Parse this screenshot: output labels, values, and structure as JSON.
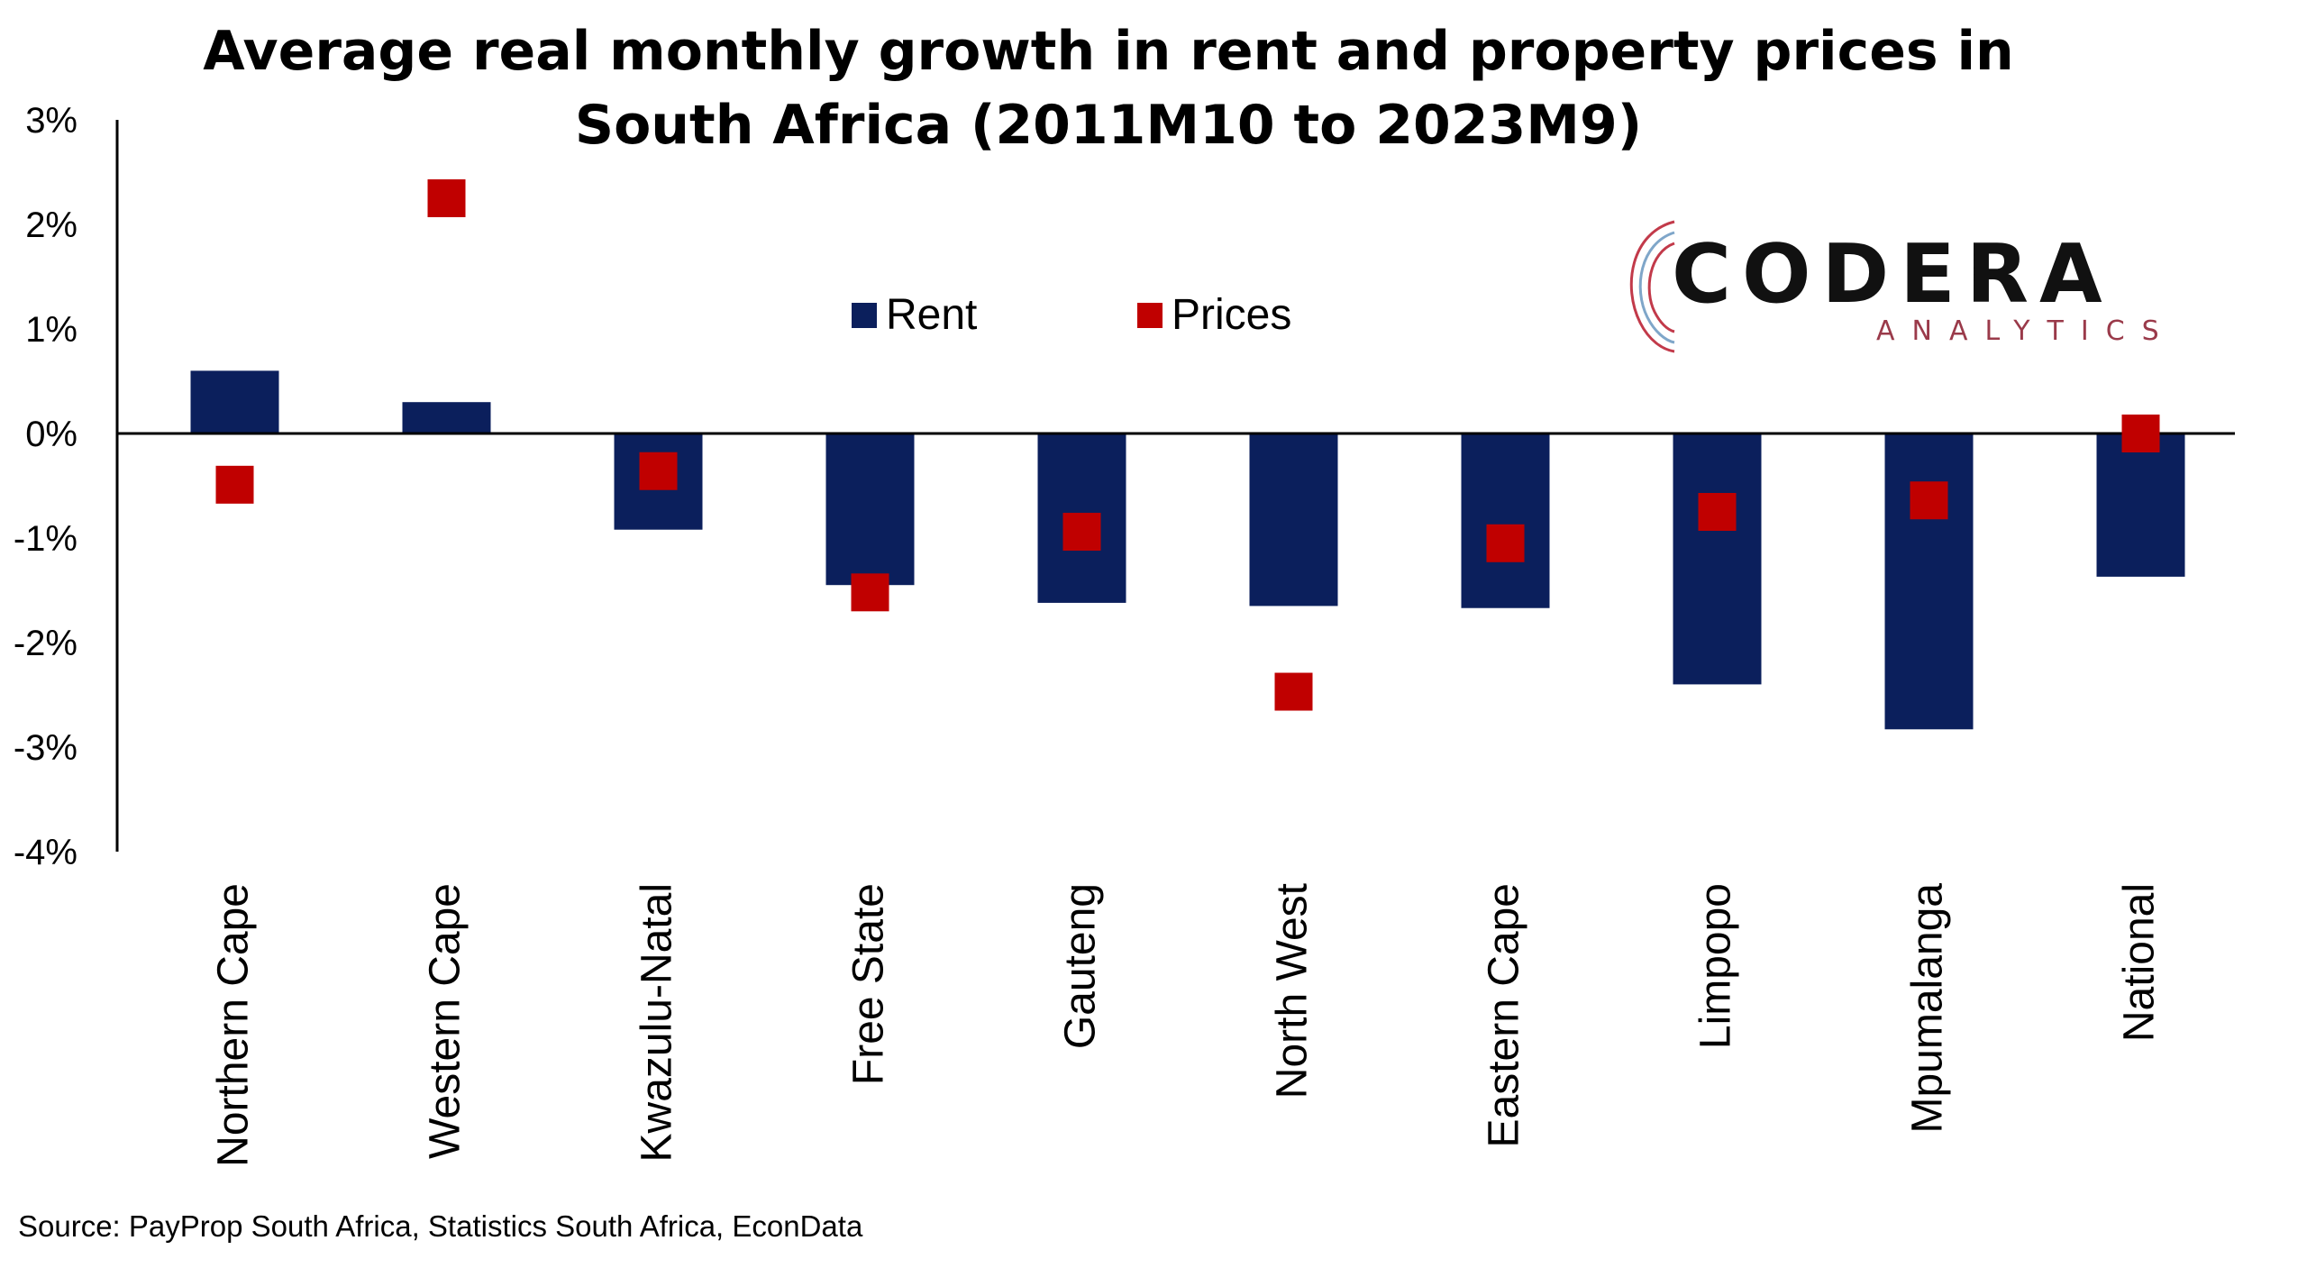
{
  "title_lines": [
    "Average real monthly growth in rent and property prices in",
    "South Africa (2011M10 to 2023M9)"
  ],
  "source": "Source: PayProp South Africa, Statistics South Africa, EconData",
  "logo": {
    "name": "CODERA",
    "subtitle": "ANALYTICS"
  },
  "colors": {
    "rent": "#0B1F5C",
    "prices": "#C00000",
    "axis": "#000000"
  },
  "chart_data": {
    "type": "bar",
    "title": "Average real monthly growth in rent and property prices in South Africa (2011M10 to 2023M9)",
    "categories": [
      "Northern Cape",
      "Western Cape",
      "Kwazulu-Natal",
      "Free State",
      "Gauteng",
      "North West",
      "Eastern Cape",
      "Limpopo",
      "Mpumalanga",
      "National"
    ],
    "series": [
      {
        "name": "Rent",
        "type": "bar",
        "color": "#0B1F5C",
        "values": [
          0.6,
          0.3,
          -0.92,
          -1.45,
          -1.62,
          -1.65,
          -1.67,
          -2.4,
          -2.83,
          -1.37
        ]
      },
      {
        "name": "Prices",
        "type": "marker",
        "color": "#C00000",
        "values": [
          -0.49,
          2.25,
          -0.36,
          -1.52,
          -0.94,
          -2.47,
          -1.05,
          -0.75,
          -0.64,
          0.0
        ]
      }
    ],
    "ylim": [
      -4,
      3
    ],
    "yticks": [
      3,
      2,
      1,
      0,
      -1,
      -2,
      -3,
      -4
    ],
    "ytick_labels": [
      "3%",
      "2%",
      "1%",
      "0%",
      "-1%",
      "-2%",
      "-3%",
      "-4%"
    ],
    "xlabel": "",
    "ylabel": "",
    "legend": "top-center",
    "grid": false
  }
}
